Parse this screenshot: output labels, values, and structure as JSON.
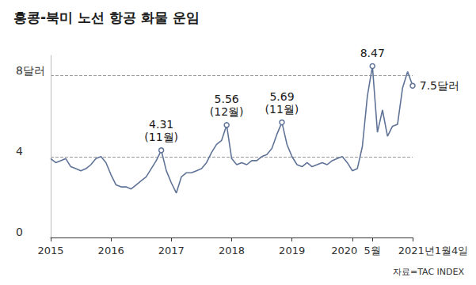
{
  "chart_data": {
    "type": "line",
    "title": "홍콩-북미 노선 항공 화물 운임",
    "source": "자료=TAC INDEX",
    "color": "#5f7397",
    "grid": true,
    "categories": [
      "2015",
      null,
      null,
      null,
      null,
      null,
      null,
      null,
      null,
      null,
      null,
      null,
      "2016",
      null,
      null,
      null,
      null,
      null,
      null,
      null,
      null,
      null,
      null,
      null,
      "2017",
      null,
      null,
      null,
      null,
      null,
      null,
      null,
      null,
      null,
      null,
      null,
      "2018",
      null,
      null,
      null,
      null,
      null,
      null,
      null,
      null,
      null,
      null,
      null,
      "2019",
      null,
      null,
      null,
      null,
      null,
      null,
      null,
      null,
      null,
      null,
      null,
      "2020",
      null,
      null,
      null,
      "5월",
      null,
      null,
      null,
      null,
      null,
      null,
      null,
      "2021년1월4일"
    ],
    "values": [
      3.9,
      3.7,
      3.8,
      3.9,
      3.5,
      3.4,
      3.3,
      3.4,
      3.6,
      3.9,
      4.0,
      3.7,
      3.1,
      2.6,
      2.5,
      2.5,
      2.4,
      2.6,
      2.8,
      3.0,
      3.4,
      3.8,
      4.31,
      3.3,
      2.7,
      2.2,
      3.0,
      3.2,
      3.2,
      3.3,
      3.4,
      3.7,
      4.2,
      4.6,
      4.8,
      5.56,
      3.9,
      3.6,
      3.7,
      3.6,
      3.8,
      3.8,
      4.0,
      4.1,
      4.4,
      5.1,
      5.69,
      4.6,
      4.0,
      3.6,
      3.5,
      3.7,
      3.5,
      3.6,
      3.7,
      3.6,
      3.8,
      3.9,
      4.0,
      3.7,
      3.3,
      3.4,
      4.5,
      7.0,
      8.47,
      5.2,
      6.3,
      5.0,
      5.5,
      5.6,
      7.4,
      8.2,
      7.5
    ],
    "value_labels": [
      null,
      null,
      null,
      null,
      null,
      null,
      null,
      null,
      null,
      null,
      null,
      null,
      null,
      null,
      null,
      null,
      null,
      null,
      null,
      null,
      null,
      null,
      "4.31\n(11월)",
      null,
      null,
      null,
      null,
      null,
      null,
      null,
      null,
      null,
      null,
      null,
      null,
      "5.56\n(12월)",
      null,
      null,
      null,
      null,
      null,
      null,
      null,
      null,
      null,
      null,
      "5.69\n(11월)",
      null,
      null,
      null,
      null,
      null,
      null,
      null,
      null,
      null,
      null,
      null,
      null,
      null,
      null,
      null,
      null,
      null,
      "8.47",
      null,
      null,
      null,
      null,
      null,
      null,
      null,
      "7.5달러"
    ],
    "ylim": [
      0,
      9
    ],
    "yticks": [
      0,
      4,
      {
        "value": 8,
        "label": "8달러"
      }
    ]
  }
}
